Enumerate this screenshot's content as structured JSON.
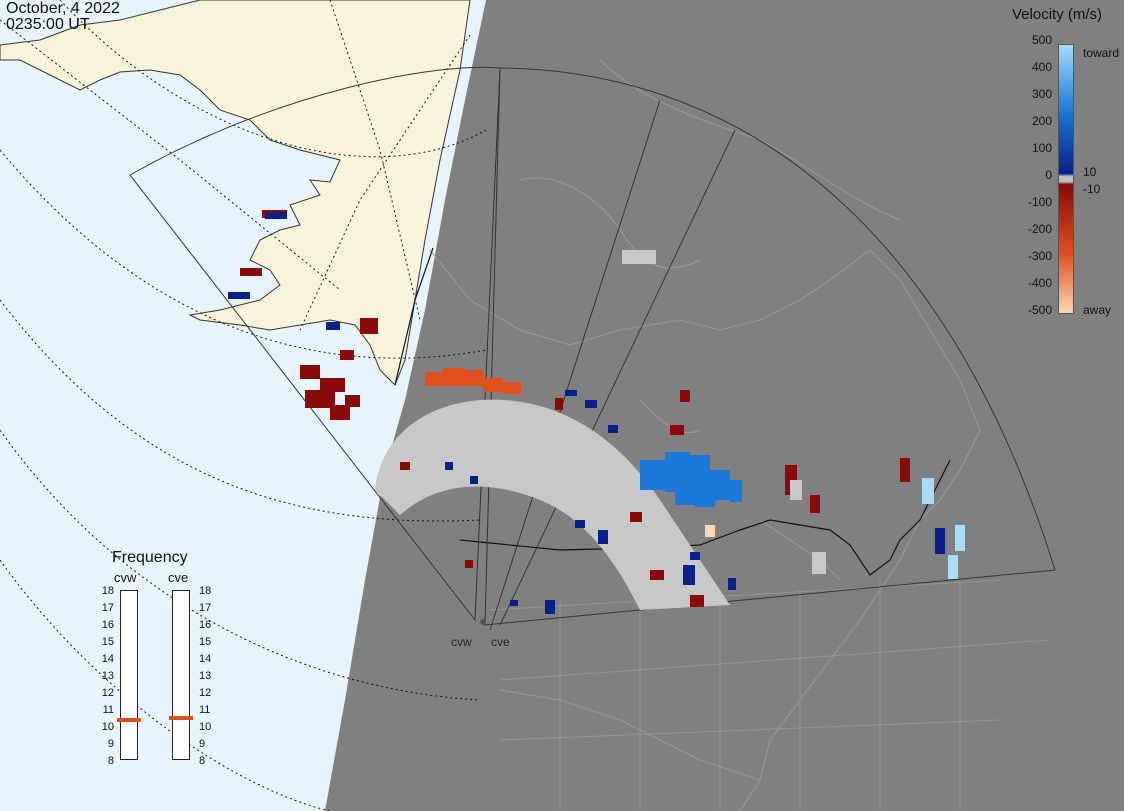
{
  "header": {
    "date": "October, 4 2022",
    "time": "0235:00 UT"
  },
  "velocity_legend": {
    "title": "Velocity (m/s)",
    "ticks": [
      "500",
      "400",
      "300",
      "200",
      "100",
      "0",
      "-100",
      "-200",
      "-300",
      "-400",
      "-500"
    ],
    "inner_ticks": [
      "10",
      "-10"
    ],
    "end_labels": {
      "top": "toward",
      "bottom": "away"
    },
    "colors": {
      "toward_light": "#a8dcf8",
      "toward_mid": "#1a78d8",
      "toward_dark": "#0a1f8a",
      "zero": "#c0c0c0",
      "away_dark": "#8a0a0a",
      "away_mid": "#e0501e",
      "away_light": "#f8d8b8"
    }
  },
  "frequency_panel": {
    "title": "Frequency",
    "radars": [
      {
        "code": "cvw",
        "frequency_mhz": 10.5
      },
      {
        "code": "cve",
        "frequency_mhz": 10.6
      }
    ],
    "scale": [
      "18",
      "17",
      "16",
      "15",
      "14",
      "13",
      "12",
      "11",
      "10",
      "9",
      "8"
    ]
  },
  "sites": [
    {
      "code": "cvw"
    },
    {
      "code": "cve"
    }
  ],
  "colors": {
    "ocean": "#e8f4fb",
    "land_alaska": "#f8f4dc",
    "night": "#808080",
    "ground_scatter": "#c8c8c8"
  }
}
